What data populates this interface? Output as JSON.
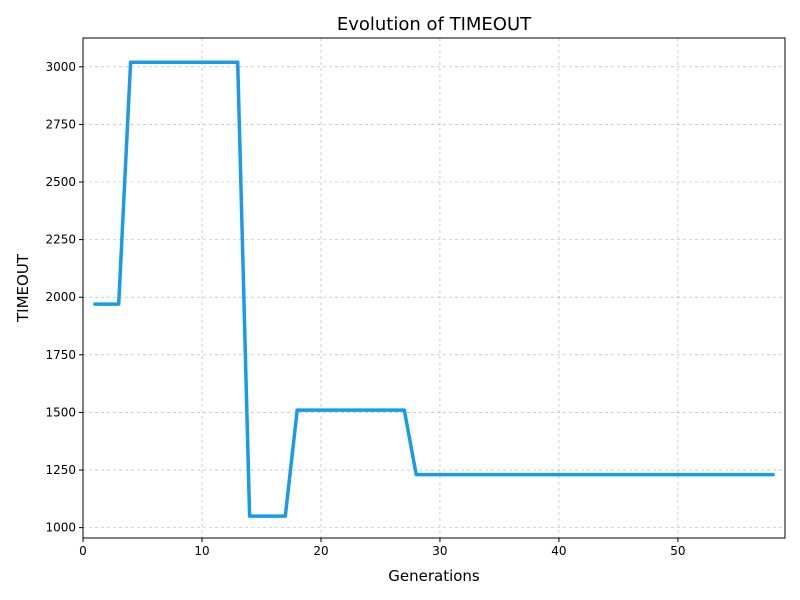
{
  "chart_data": {
    "type": "line",
    "title": "Evolution of TIMEOUT",
    "xlabel": "Generations",
    "ylabel": "TIMEOUT",
    "xlim": [
      0,
      59
    ],
    "ylim": [
      955,
      3125
    ],
    "xticks": [
      0,
      10,
      20,
      30,
      40,
      50
    ],
    "yticks": [
      1000,
      1250,
      1500,
      1750,
      2000,
      2250,
      2500,
      2750,
      3000
    ],
    "grid": true,
    "line_color": "#1a9be6",
    "series": [
      {
        "x": [
          1,
          2,
          3,
          4,
          5,
          6,
          7,
          8,
          9,
          10,
          11,
          12,
          13,
          14,
          15,
          16,
          17,
          18,
          19,
          20,
          21,
          22,
          23,
          24,
          25,
          26,
          27,
          28,
          29,
          30,
          31,
          32,
          33,
          34,
          35,
          36,
          37,
          38,
          39,
          40,
          41,
          42,
          43,
          44,
          45,
          46,
          47,
          48,
          49,
          50,
          51,
          52,
          53,
          54,
          55,
          56,
          57,
          58
        ],
        "values": [
          1970,
          1970,
          1970,
          3020,
          3020,
          3020,
          3020,
          3020,
          3020,
          3020,
          3020,
          3020,
          3020,
          1050,
          1050,
          1050,
          1050,
          1510,
          1510,
          1510,
          1510,
          1510,
          1510,
          1510,
          1510,
          1510,
          1510,
          1230,
          1230,
          1230,
          1230,
          1230,
          1230,
          1230,
          1230,
          1230,
          1230,
          1230,
          1230,
          1230,
          1230,
          1230,
          1230,
          1230,
          1230,
          1230,
          1230,
          1230,
          1230,
          1230,
          1230,
          1230,
          1230,
          1230,
          1230,
          1230,
          1230,
          1230
        ]
      }
    ]
  }
}
